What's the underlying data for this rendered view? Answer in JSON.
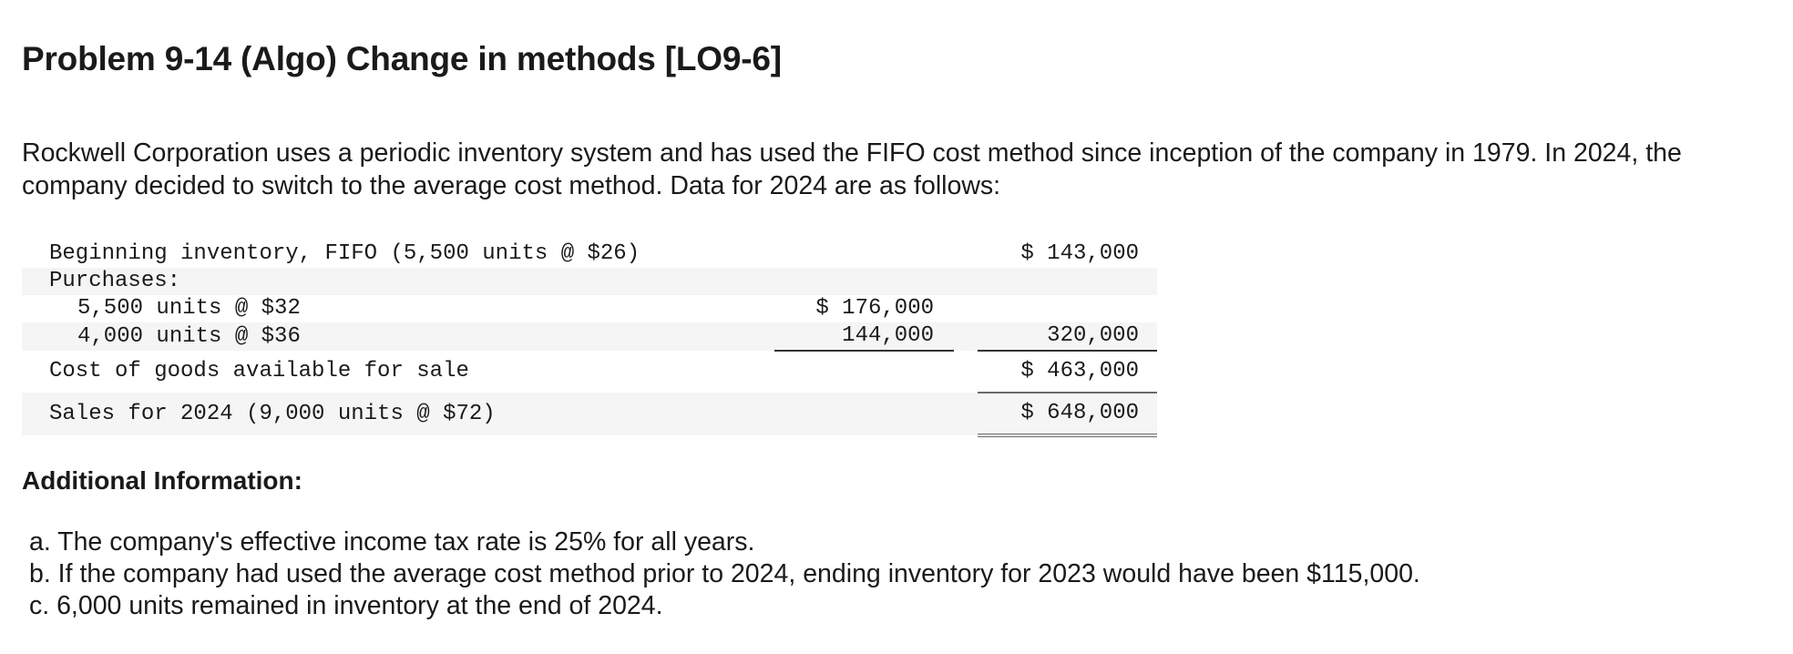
{
  "problem": {
    "title": "Problem 9-14 (Algo) Change in methods [LO9-6]",
    "intro": "Rockwell Corporation uses a periodic inventory system and has used the FIFO cost method since inception of the company in 1979. In 2024, the company decided to switch to the average cost method. Data for 2024 are as follows:"
  },
  "inventory_table": {
    "rows": [
      {
        "label": "Beginning inventory, FIFO (5,500 units @ $26)",
        "col1": "",
        "col2": "$ 143,000"
      },
      {
        "label": "Purchases:",
        "col1": "",
        "col2": ""
      },
      {
        "label": "5,500 units @ $32",
        "col1": "$ 176,000",
        "col2": ""
      },
      {
        "label": "4,000 units @ $36",
        "col1": "144,000",
        "col2": "320,000"
      },
      {
        "label": "Cost of goods available for sale",
        "col1": "",
        "col2": "$ 463,000"
      },
      {
        "label": "Sales for 2024 (9,000 units @ $72)",
        "col1": "",
        "col2": "$ 648,000"
      }
    ]
  },
  "additional": {
    "heading": "Additional Information:",
    "items": [
      "a. The company's effective income tax rate is 25% for all years.",
      "b. If the company had used the average cost method prior to 2024, ending inventory for 2023 would have been $115,000.",
      "c. 6,000 units remained in inventory at the end of 2024."
    ]
  }
}
